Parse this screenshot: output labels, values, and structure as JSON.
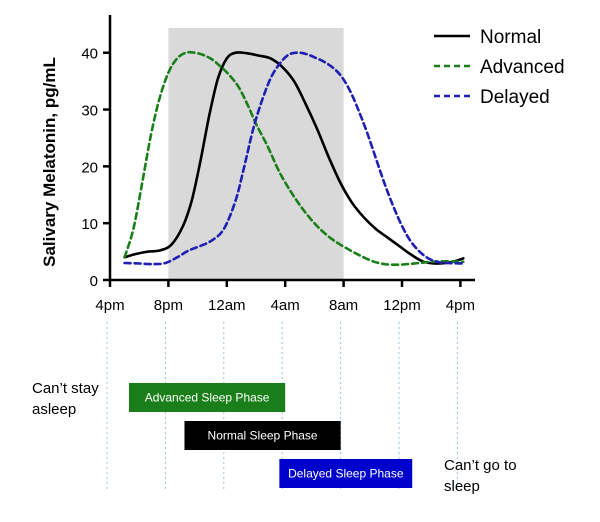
{
  "chart_data": {
    "type": "line",
    "title": "",
    "xlabel": "",
    "ylabel": "Salivary Melatonin, pg/mL",
    "ylim": [
      0,
      44
    ],
    "yticks": [
      0,
      10,
      20,
      30,
      40
    ],
    "xlim": [
      16,
      41
    ],
    "xticks": [
      {
        "value": 16,
        "label": "4pm"
      },
      {
        "value": 20,
        "label": "8pm"
      },
      {
        "value": 24,
        "label": "12am"
      },
      {
        "value": 28,
        "label": "4am"
      },
      {
        "value": 32,
        "label": "8am"
      },
      {
        "value": 36,
        "label": "12pm"
      },
      {
        "value": 40,
        "label": "4pm"
      }
    ],
    "grid": false,
    "legend": "top-right",
    "shaded_region": {
      "x_start": 20,
      "x_end": 32,
      "color": "#d9d9d9"
    },
    "series": [
      {
        "name": "Normal",
        "color": "#000000",
        "dash": "solid",
        "x": [
          17.0,
          17.8,
          18.6,
          19.4,
          20.2,
          21.0,
          21.6,
          22.2,
          22.8,
          23.4,
          24.0,
          24.6,
          25.4,
          26.2,
          27.0,
          27.8,
          28.6,
          29.4,
          30.2,
          31.0,
          31.8,
          32.6,
          33.4,
          34.2,
          35.0,
          35.8,
          36.6,
          37.4,
          38.2,
          39.0,
          39.6,
          40.2
        ],
        "values": [
          4.0,
          4.6,
          5.0,
          5.2,
          6.2,
          9.5,
          14.0,
          21.0,
          29.0,
          35.5,
          39.0,
          40.0,
          39.9,
          39.5,
          39.0,
          37.5,
          35.0,
          31.0,
          26.5,
          21.5,
          17.0,
          13.5,
          11.0,
          9.0,
          7.5,
          6.0,
          4.5,
          3.3,
          2.9,
          3.0,
          3.3,
          3.8
        ]
      },
      {
        "name": "Advanced",
        "color": "#1a7f1a",
        "dash": "dashed",
        "x": [
          17.0,
          17.6,
          18.2,
          18.8,
          19.4,
          20.0,
          20.6,
          21.2,
          21.8,
          22.4,
          23.0,
          23.6,
          24.2,
          24.8,
          25.4,
          26.0,
          26.8,
          27.6,
          28.4,
          29.2,
          30.0,
          30.8,
          31.6,
          32.4,
          33.2,
          34.0,
          34.8,
          35.6,
          36.4,
          37.2,
          38.0,
          39.0,
          40.2
        ],
        "values": [
          4.0,
          9.0,
          17.0,
          25.5,
          32.0,
          36.5,
          39.0,
          40.0,
          40.0,
          39.6,
          38.8,
          37.5,
          36.0,
          34.0,
          31.0,
          27.5,
          23.5,
          19.0,
          15.5,
          12.5,
          10.0,
          8.0,
          6.5,
          5.3,
          4.2,
          3.3,
          2.8,
          2.7,
          2.8,
          3.0,
          3.2,
          3.3,
          3.2
        ]
      },
      {
        "name": "Delayed",
        "color": "#1f1fb3",
        "dash": "dashed",
        "x": [
          17.0,
          18.0,
          19.0,
          19.8,
          20.6,
          21.4,
          22.2,
          23.0,
          23.8,
          24.6,
          25.2,
          25.8,
          26.4,
          27.0,
          27.6,
          28.2,
          28.8,
          29.4,
          30.0,
          30.6,
          31.2,
          31.8,
          32.4,
          33.0,
          33.6,
          34.2,
          34.8,
          35.4,
          36.0,
          36.6,
          37.2,
          37.8,
          38.4,
          39.0,
          40.2
        ],
        "values": [
          3.0,
          2.9,
          2.8,
          3.0,
          4.0,
          5.2,
          6.0,
          7.0,
          9.0,
          14.0,
          20.0,
          26.5,
          31.5,
          35.5,
          38.0,
          39.6,
          40.0,
          39.8,
          39.2,
          38.5,
          37.5,
          36.0,
          33.5,
          30.0,
          26.0,
          21.5,
          17.0,
          13.0,
          9.5,
          6.8,
          5.0,
          3.8,
          3.2,
          3.0,
          2.9
        ]
      }
    ]
  },
  "phases": [
    {
      "label": "Advanced Sleep Phase",
      "x_start": 17.3,
      "x_end": 28.0,
      "bg": "#1a7f1a",
      "fg": "#ffffff"
    },
    {
      "label": "Normal Sleep Phase",
      "x_start": 21.1,
      "x_end": 31.8,
      "bg": "#000000",
      "fg": "#ffffff"
    },
    {
      "label": "Delayed Sleep Phase",
      "x_start": 27.6,
      "x_end": 36.7,
      "bg": "#0000cc",
      "fg": "#ffffff"
    }
  ],
  "notes": {
    "left_line1": "Can’t stay",
    "left_line2": "asleep",
    "right_line1": "Can’t go to",
    "right_line2": "sleep"
  }
}
